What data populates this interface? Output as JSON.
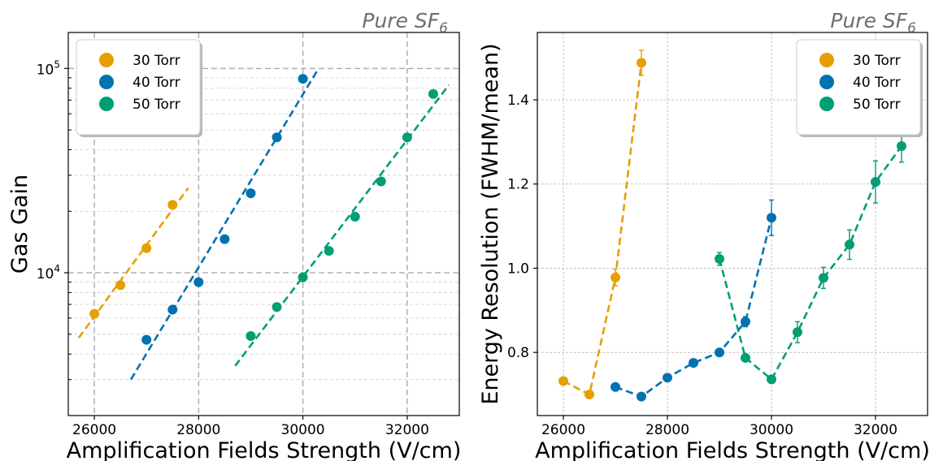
{
  "colors": {
    "30 Torr": "#E69F00",
    "40 Torr": "#0072B2",
    "50 Torr": "#009E73"
  },
  "chart_data": [
    {
      "type": "scatter",
      "xlabel": "Amplification Fields Strength (V/cm)",
      "ylabel": "Gas Gain",
      "corner_label": "Pure SF",
      "corner_label_sub": "6",
      "yscale": "log",
      "xlim": [
        25500,
        33000
      ],
      "ylim": [
        2000,
        150000
      ],
      "x_ticks": [
        26000,
        28000,
        30000,
        32000
      ],
      "x_tick_labels": [
        "26000",
        "28000",
        "30000",
        "32000"
      ],
      "y_ticks": [
        10000,
        100000
      ],
      "y_tick_labels": [
        {
          "base": "10",
          "exp": "4"
        },
        {
          "base": "10",
          "exp": "5"
        }
      ],
      "grid": true,
      "legend_position": "top-left",
      "legend": [
        "30 Torr",
        "40 Torr",
        "50 Torr"
      ],
      "series": [
        {
          "name": "30 Torr",
          "x": [
            26000,
            26500,
            27000,
            27500
          ],
          "y": [
            6300,
            8700,
            13200,
            21500
          ],
          "fit": {
            "x": [
              25700,
              27800
            ],
            "y": [
              4800,
              26000
            ]
          }
        },
        {
          "name": "40 Torr",
          "x": [
            27000,
            27500,
            28000,
            28500,
            29000,
            29500,
            30000
          ],
          "y": [
            4700,
            6600,
            9000,
            14600,
            24500,
            46000,
            89000
          ],
          "fit": {
            "x": [
              26700,
              30300
            ],
            "y": [
              3000,
              100000
            ]
          }
        },
        {
          "name": "50 Torr",
          "x": [
            29000,
            29500,
            30000,
            30500,
            31000,
            31500,
            32000,
            32500
          ],
          "y": [
            4900,
            6800,
            9500,
            12800,
            18800,
            28000,
            46000,
            75000
          ],
          "fit": {
            "x": [
              28700,
              32800
            ],
            "y": [
              3500,
              83000
            ]
          }
        }
      ]
    },
    {
      "type": "line",
      "xlabel": "Amplification Fields Strength (V/cm)",
      "ylabel": "Energy Resolution (FWHM/mean)",
      "corner_label": "Pure SF",
      "corner_label_sub": "6",
      "xlim": [
        25500,
        33000
      ],
      "ylim": [
        0.65,
        1.56
      ],
      "x_ticks": [
        26000,
        28000,
        30000,
        32000
      ],
      "x_tick_labels": [
        "26000",
        "28000",
        "30000",
        "32000"
      ],
      "y_ticks": [
        0.8,
        1.0,
        1.2,
        1.4
      ],
      "y_tick_labels": [
        "0.8",
        "1.0",
        "1.2",
        "1.4"
      ],
      "grid": true,
      "legend_position": "top-right",
      "legend": [
        "30 Torr",
        "40 Torr",
        "50 Torr"
      ],
      "series": [
        {
          "name": "30 Torr",
          "x": [
            26000,
            26500,
            27000,
            27500
          ],
          "y": [
            0.732,
            0.7,
            0.978,
            1.488
          ],
          "err": [
            0.005,
            0.005,
            0.02,
            0.03
          ]
        },
        {
          "name": "40 Torr",
          "x": [
            27000,
            27500,
            28000,
            28500,
            29000,
            29500,
            30000
          ],
          "y": [
            0.718,
            0.695,
            0.74,
            0.775,
            0.8,
            0.873,
            1.12
          ],
          "err": [
            0.005,
            0.005,
            0.006,
            0.006,
            0.008,
            0.012,
            0.042
          ]
        },
        {
          "name": "50 Torr",
          "x": [
            29000,
            29500,
            30000,
            30500,
            31000,
            31500,
            32000,
            32500
          ],
          "y": [
            1.022,
            0.787,
            0.736,
            0.848,
            0.977,
            1.056,
            1.205,
            1.29
          ],
          "err": [
            0.015,
            0.006,
            0.005,
            0.025,
            0.025,
            0.035,
            0.05,
            0.038
          ]
        }
      ]
    }
  ]
}
